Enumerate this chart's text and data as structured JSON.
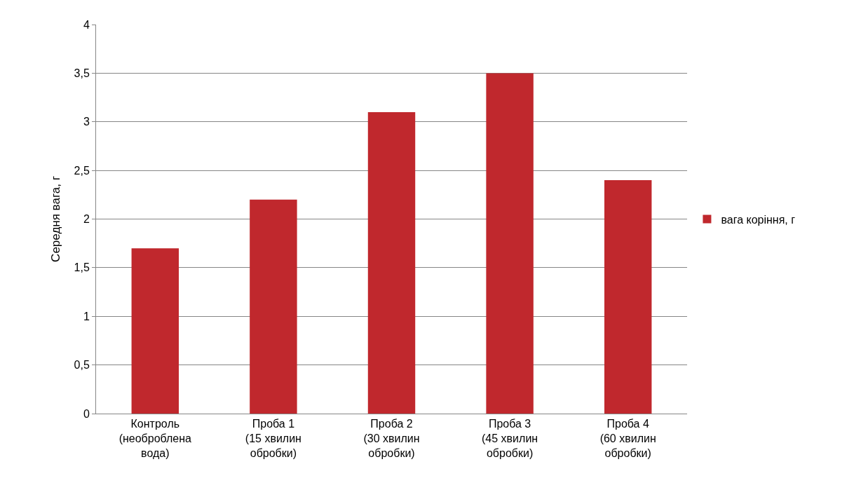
{
  "chart_data": {
    "type": "bar",
    "ylabel": "Середня вага, г",
    "categories": [
      "Контроль\n(необроблена\nвода)",
      "Проба 1\n(15 хвилин\nобробки)",
      "Проба 2\n(30 хвилин\nобробки)",
      "Проба 3\n(45 хвилин\nобробки)",
      "Проба 4\n(60 хвилин\nобробки)"
    ],
    "series": [
      {
        "name": "вага коріння, г",
        "color": "#c0282d",
        "values": [
          1.7,
          2.2,
          3.1,
          3.5,
          2.4
        ]
      }
    ],
    "ylim": [
      0,
      4
    ],
    "yticks": [
      0,
      {
        "value": 0.5,
        "label": "0,5"
      },
      1,
      {
        "value": 1.5,
        "label": "1,5"
      },
      2,
      {
        "value": 2.5,
        "label": "2,5"
      },
      3,
      {
        "value": 3.5,
        "label": "3,5"
      },
      4
    ],
    "grid": "y",
    "legend": "right"
  }
}
